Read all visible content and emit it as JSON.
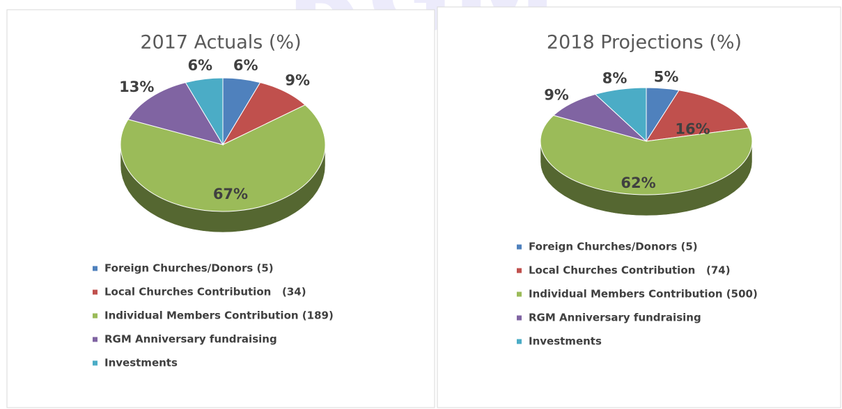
{
  "watermark": "RGM",
  "chart_data": [
    {
      "type": "pie",
      "title": "2017 Actuals (%)",
      "categories": [
        "Foreign Churches/Donors (5)",
        "Local Churches Contribution   (34)",
        "Individual Members Contribution (189)",
        "RGM Anniversary fundraising",
        "Investments"
      ],
      "values": [
        6,
        9,
        67,
        13,
        6
      ],
      "value_labels": [
        "6%",
        "9%",
        "67%",
        "13%",
        "6%"
      ],
      "colors": [
        "#4f81bd",
        "#c0504d",
        "#9bbb59",
        "#8064a2",
        "#4bacc6"
      ]
    },
    {
      "type": "pie",
      "title": "2018 Projections (%)",
      "categories": [
        "Foreign Churches/Donors (5)",
        "Local Churches Contribution   (74)",
        "Individual Members Contribution (500)",
        "RGM Anniversary fundraising",
        "Investments"
      ],
      "values": [
        5,
        16,
        62,
        9,
        8
      ],
      "value_labels": [
        "5%",
        "16%",
        "62%",
        "9%",
        "8%"
      ],
      "colors": [
        "#4f81bd",
        "#c0504d",
        "#9bbb59",
        "#8064a2",
        "#4bacc6"
      ]
    }
  ]
}
